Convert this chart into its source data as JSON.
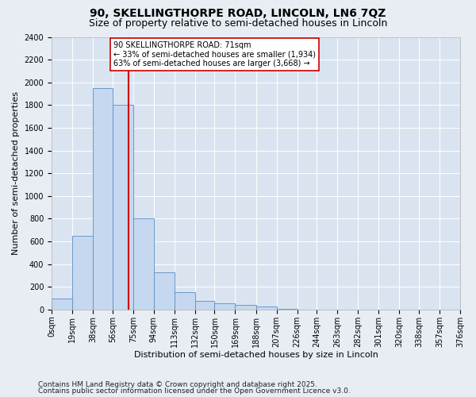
{
  "title1": "90, SKELLINGTHORPE ROAD, LINCOLN, LN6 7QZ",
  "title2": "Size of property relative to semi-detached houses in Lincoln",
  "xlabel": "Distribution of semi-detached houses by size in Lincoln",
  "ylabel": "Number of semi-detached properties",
  "footnote1": "Contains HM Land Registry data © Crown copyright and database right 2025.",
  "footnote2": "Contains public sector information licensed under the Open Government Licence v3.0.",
  "annotation_line1": "90 SKELLINGTHORPE ROAD: 71sqm",
  "annotation_line2": "← 33% of semi-detached houses are smaller (1,934)",
  "annotation_line3": "63% of semi-detached houses are larger (3,668) →",
  "bin_edges": [
    0,
    19,
    38,
    56,
    75,
    94,
    113,
    132,
    150,
    169,
    188,
    207,
    226,
    244,
    263,
    282,
    301,
    320,
    338,
    357,
    376
  ],
  "bar_heights": [
    100,
    650,
    1950,
    1800,
    800,
    325,
    150,
    75,
    55,
    40,
    30,
    5,
    0,
    0,
    0,
    0,
    0,
    0,
    0,
    0
  ],
  "bar_color": "#c5d8ef",
  "bar_edge_color": "#5b8ec4",
  "vline_color": "#cc0000",
  "vline_x": 71,
  "ylim": [
    0,
    2400
  ],
  "yticks": [
    0,
    200,
    400,
    600,
    800,
    1000,
    1200,
    1400,
    1600,
    1800,
    2000,
    2200,
    2400
  ],
  "bg_color": "#e8edf4",
  "plot_bg_color": "#dae4f0",
  "annotation_box_facecolor": "#ffffff",
  "annotation_box_edgecolor": "#cc0000",
  "title1_fontsize": 10,
  "title2_fontsize": 9,
  "axis_label_fontsize": 8,
  "tick_fontsize": 7,
  "footnote_fontsize": 6.5
}
